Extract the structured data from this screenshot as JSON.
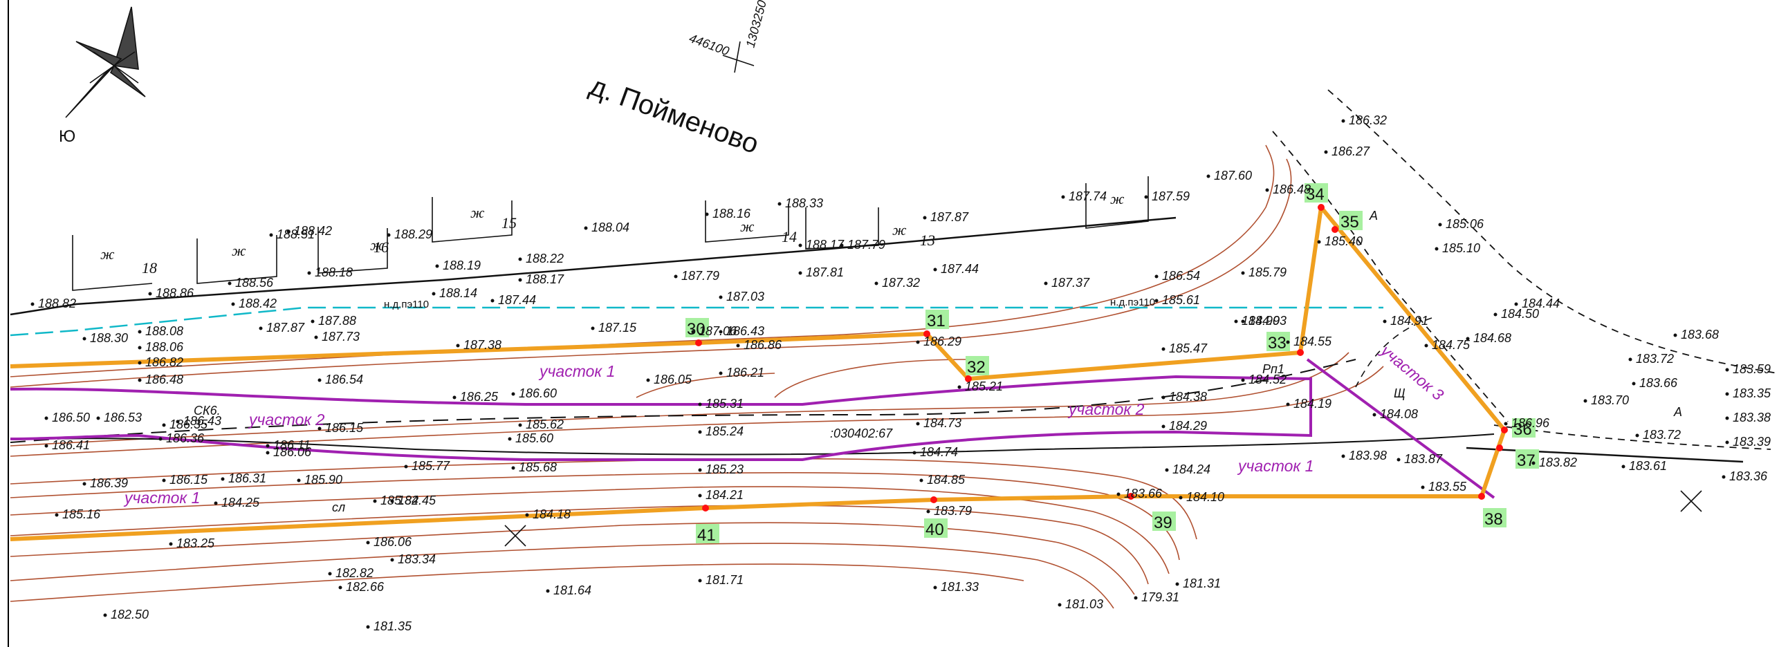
{
  "village": "д. Пойменово",
  "north_letter": "Ю",
  "coords": {
    "x": "446100",
    "y": "1303250"
  },
  "cadastre": ":030402:67",
  "road_labels": {
    "left": "н.д.пэ110",
    "right": "н.д.пэ110"
  },
  "misc_labels": {
    "rp": "Рп1",
    "sch": "Щ",
    "sk": "СК6.",
    "sl": "сл",
    "a1": "А",
    "a2": "А"
  },
  "plots": {
    "p1_left": "участок 1",
    "p1_mid": "участок 1",
    "p1_right": "участок 1",
    "p2_left": "участок 2",
    "p2_right": "участок 2",
    "p3": "участок 3"
  },
  "buildings": [
    {
      "type": "ж",
      "num": "18"
    },
    {
      "type": "ж",
      "num": ""
    },
    {
      "type": "ж",
      "num": "16"
    },
    {
      "type": "ж",
      "num": "15"
    },
    {
      "type": "ж",
      "num": "14"
    },
    {
      "type": "ж",
      "num": "13"
    },
    {
      "type": "ж",
      "num": ""
    }
  ],
  "point_tags": [
    "30",
    "31",
    "32",
    "33",
    "34",
    "35",
    "36",
    "37",
    "38",
    "39",
    "40",
    "41"
  ],
  "elevations": [
    "188.82",
    "188.30",
    "188.86",
    "188.08",
    "188.06",
    "188.56",
    "188.51",
    "188.42",
    "188.42",
    "188.18",
    "188.29",
    "187.87",
    "187.88",
    "187.73",
    "188.19",
    "188.14",
    "188.22",
    "188.17",
    "188.04",
    "187.44",
    "187.03",
    "188.16",
    "187.79",
    "188.33",
    "188.17",
    "187.81",
    "187.79",
    "187.32",
    "187.87",
    "187.44",
    "187.74",
    "187.37",
    "187.59",
    "187.60",
    "186.48",
    "186.27",
    "186.32",
    "185.06",
    "185.10",
    "184.44",
    "184.50",
    "184.68",
    "183.68",
    "183.72",
    "183.59",
    "183.66",
    "183.35",
    "183.70",
    "183.38",
    "183.72",
    "183.39",
    "183.61",
    "183.36",
    "183.82",
    "186.54",
    "185.61",
    "185.79",
    "185.47",
    "184.93",
    "185.40",
    "184.91",
    "184.75",
    "184.90",
    "184.55",
    "184.52",
    "184.19",
    "184.38",
    "184.29",
    "184.08",
    "183.98",
    "183.87",
    "183.55",
    "184.24",
    "184.10",
    "183.66",
    "183.79",
    "184.85",
    "184.74",
    "184.73",
    "185.24",
    "185.23",
    "185.21",
    "185.31",
    "186.05",
    "186.21",
    "186.43",
    "186.29",
    "187.15",
    "187.06",
    "186.86",
    "187.38",
    "186.54",
    "186.25",
    "186.60",
    "186.48",
    "186.82",
    "186.15",
    "186.53",
    "186.50",
    "186.36",
    "186.35",
    "186.43",
    "186.15",
    "186.41",
    "186.06",
    "186.11",
    "186.39",
    "186.31",
    "185.90",
    "185.77",
    "185.68",
    "185.62",
    "185.60",
    "185.16",
    "184.25",
    "185.82",
    "184.45",
    "184.18",
    "184.21",
    "183.25",
    "186.06",
    "183.34",
    "182.82",
    "182.66",
    "182.50",
    "181.35",
    "181.64",
    "181.71",
    "181.33",
    "181.03",
    "181.31",
    "179.31",
    "186.96"
  ]
}
